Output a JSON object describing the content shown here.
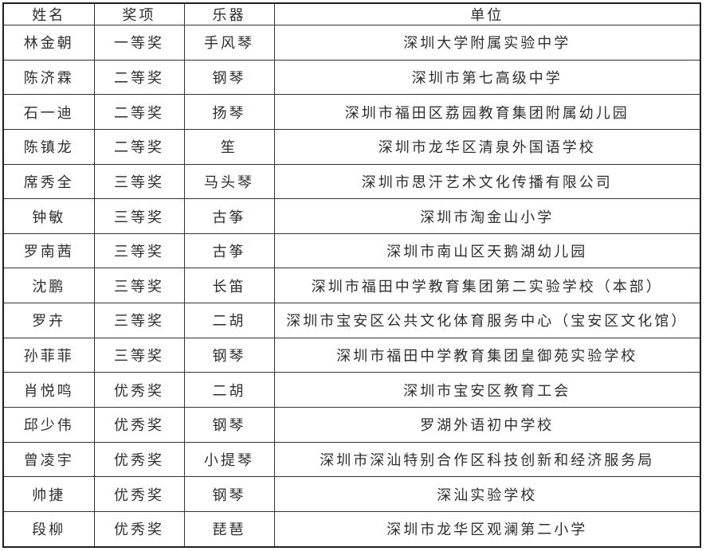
{
  "colors": {
    "background": "#ffffff",
    "border": "#333333",
    "outer_border": "#1f1f1f",
    "text": "#2e2e2e"
  },
  "table": {
    "headers": {
      "name": "姓名",
      "award": "奖项",
      "instrument": "乐器",
      "organization": "单位"
    },
    "rows": [
      {
        "name": "林金朝",
        "award": "一等奖",
        "instrument": "手风琴",
        "organization": "深圳大学附属实验中学"
      },
      {
        "name": "陈济霖",
        "award": "二等奖",
        "instrument": "钢琴",
        "organization": "深圳市第七高级中学"
      },
      {
        "name": "石一迪",
        "award": "二等奖",
        "instrument": "扬琴",
        "organization": "深圳市福田区荔园教育集团附属幼儿园"
      },
      {
        "name": "陈镇龙",
        "award": "二等奖",
        "instrument": "笙",
        "organization": "深圳市龙华区清泉外国语学校"
      },
      {
        "name": "席秀全",
        "award": "三等奖",
        "instrument": "马头琴",
        "organization": "深圳市思汗艺术文化传播有限公司"
      },
      {
        "name": "钟敏",
        "award": "三等奖",
        "instrument": "古筝",
        "organization": "深圳市淘金山小学"
      },
      {
        "name": "罗南茜",
        "award": "三等奖",
        "instrument": "古筝",
        "organization": "深圳市南山区天鹅湖幼儿园"
      },
      {
        "name": "沈鹏",
        "award": "三等奖",
        "instrument": "长笛",
        "organization": "深圳市福田中学教育集团第二实验学校（本部）"
      },
      {
        "name": "罗卉",
        "award": "三等奖",
        "instrument": "二胡",
        "organization": "深圳市宝安区公共文化体育服务中心（宝安区文化馆）"
      },
      {
        "name": "孙菲菲",
        "award": "三等奖",
        "instrument": "钢琴",
        "organization": "深圳市福田中学教育集团皇御苑实验学校"
      },
      {
        "name": "肖悦鸣",
        "award": "优秀奖",
        "instrument": "二胡",
        "organization": "深圳市宝安区教育工会"
      },
      {
        "name": "邱少伟",
        "award": "优秀奖",
        "instrument": "钢琴",
        "organization": "罗湖外语初中学校"
      },
      {
        "name": "曾凌宇",
        "award": "优秀奖",
        "instrument": "小提琴",
        "organization": "深圳市深汕特别合作区科技创新和经济服务局"
      },
      {
        "name": "帅捷",
        "award": "优秀奖",
        "instrument": "钢琴",
        "organization": "深汕实验学校"
      },
      {
        "name": "段柳",
        "award": "优秀奖",
        "instrument": "琵琶",
        "organization": "深圳市龙华区观澜第二小学"
      }
    ]
  }
}
